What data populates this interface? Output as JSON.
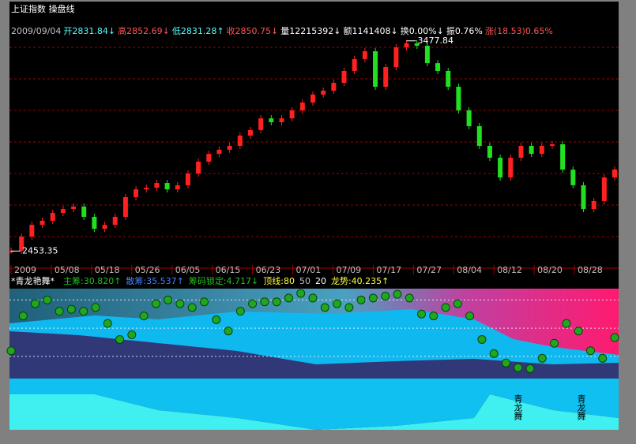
{
  "header": {
    "title": "上证指数 操盘线",
    "info": [
      {
        "text": "2009/09/04",
        "color": "#c0c0c0"
      },
      {
        "text": "开2831.84↓",
        "color": "#54ffff"
      },
      {
        "text": "高2852.69↓",
        "color": "#ff5454"
      },
      {
        "text": "低2831.28↑",
        "color": "#54ffff"
      },
      {
        "text": "收2850.75↓",
        "color": "#ff5454"
      },
      {
        "text": "量12215392↓",
        "color": "#ffffff"
      },
      {
        "text": "额1141408↓",
        "color": "#ffffff"
      },
      {
        "text": "换0.00%↓",
        "color": "#ffffff"
      },
      {
        "text": "振0.76%",
        "color": "#ffffff"
      },
      {
        "text": "涨(18.53)0.65%",
        "color": "#ff5454"
      }
    ]
  },
  "chart_data": [
    {
      "type": "candle-close",
      "x_labels": [
        "2009",
        "05/08",
        "05/18",
        "05/26",
        "06/05",
        "06/15",
        "06/23",
        "07/01",
        "07/09",
        "07/17",
        "07/27",
        "08/04",
        "08/12",
        "08/20",
        "08/28"
      ],
      "values": [
        2455,
        2524,
        2581,
        2601,
        2639,
        2658,
        2670,
        2620,
        2562,
        2581,
        2620,
        2716,
        2754,
        2762,
        2785,
        2754,
        2774,
        2831,
        2889,
        2927,
        2947,
        2966,
        3016,
        3043,
        3100,
        3081,
        3100,
        3139,
        3177,
        3216,
        3235,
        3273,
        3331,
        3389,
        3427,
        3254,
        3350,
        3446,
        3466,
        3454,
        3369,
        3331,
        3254,
        3139,
        3062,
        2966,
        2908,
        2812,
        2908,
        2966,
        2927,
        2966,
        2974,
        2850,
        2774,
        2658,
        2697,
        2812,
        2851
      ],
      "ylim": [
        2370,
        3600
      ],
      "up_color": "#ff2020",
      "down_color": "#20e020",
      "annotations": [
        {
          "text": "3477.84",
          "value": 3477.84,
          "index": 38
        },
        {
          "text": "2453.35",
          "value": 2453.35,
          "index": 0
        }
      ]
    },
    {
      "type": "bubble-line",
      "title": "*青龙艳舞*",
      "legend": [
        {
          "text": "主筹:30.820↑",
          "color": "#20c020"
        },
        {
          "text": "散筹:35.537↑",
          "color": "#4080ff"
        },
        {
          "text": "筹码锁定:4.717↓",
          "color": "#20c020"
        },
        {
          "text": "顶线:80",
          "color": "#ffff40"
        },
        {
          "text": "50",
          "color": "#c0c0c0"
        },
        {
          "text": "20",
          "color": "#ffffff"
        },
        {
          "text": "龙势:40.235↑",
          "color": "#ffff40"
        }
      ],
      "ref_lines": [
        80,
        50,
        20
      ],
      "values": [
        26,
        63,
        76,
        80,
        68,
        70,
        68,
        72,
        55,
        38,
        43,
        63,
        76,
        80,
        76,
        72,
        78,
        59,
        47,
        68,
        76,
        78,
        78,
        82,
        87,
        82,
        72,
        76,
        72,
        80,
        82,
        84,
        86,
        82,
        65,
        63,
        72,
        76,
        63,
        38,
        23,
        13,
        8,
        7,
        18,
        34,
        55,
        47,
        26,
        18,
        40
      ],
      "ylim": [
        -58,
        92
      ],
      "color": "#1fa81f",
      "watermark": "青龙舞"
    }
  ]
}
